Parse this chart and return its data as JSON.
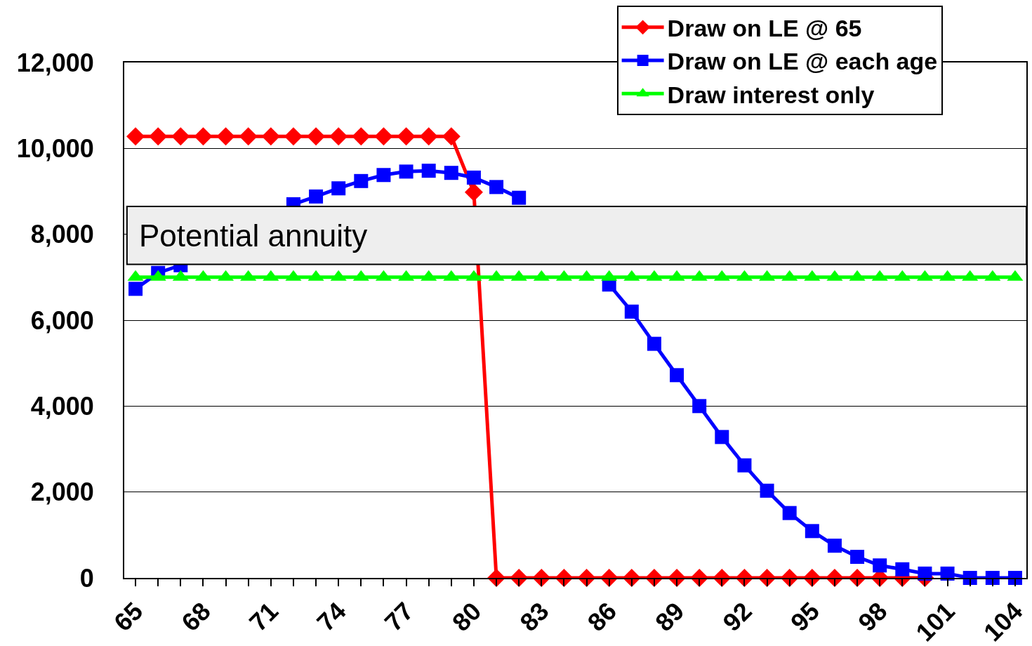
{
  "chart_data": {
    "type": "line",
    "categories": [
      "65",
      null,
      null,
      "68",
      null,
      null,
      "71",
      null,
      null,
      "74",
      null,
      null,
      "77",
      null,
      null,
      "80",
      null,
      null,
      "83",
      null,
      null,
      "86",
      null,
      null,
      "89",
      null,
      null,
      "92",
      null,
      null,
      "95",
      null,
      null,
      "98",
      null,
      null,
      "101",
      null,
      null,
      "104"
    ],
    "series": [
      {
        "name": "Draw on LE @ 65",
        "color": "#ff0000",
        "marker": "diamond",
        "values": [
          10280,
          10280,
          10280,
          10280,
          10280,
          10280,
          10280,
          10280,
          10280,
          10280,
          10280,
          10280,
          10280,
          10280,
          10280,
          8980,
          0,
          0,
          0,
          0,
          0,
          0,
          0,
          0,
          0,
          0,
          0,
          0,
          0,
          0,
          0,
          0,
          0,
          0,
          0,
          0,
          null,
          null,
          null,
          null
        ]
      },
      {
        "name": "Draw on LE @ each age",
        "color": "#0000ff",
        "marker": "square",
        "values": [
          6730,
          7100,
          7280,
          null,
          null,
          null,
          null,
          8700,
          8880,
          9070,
          9240,
          9380,
          9460,
          9480,
          9430,
          9320,
          9100,
          8850,
          null,
          null,
          null,
          6830,
          6200,
          5450,
          4720,
          4000,
          3280,
          2620,
          2030,
          1510,
          1090,
          750,
          490,
          290,
          200,
          100,
          100,
          0,
          0,
          0
        ]
      },
      {
        "name": "Draw interest only",
        "color": "#00ff00",
        "marker": "triangle",
        "values": [
          7000,
          7000,
          7000,
          7000,
          7000,
          7000,
          7000,
          7000,
          7000,
          7000,
          7000,
          7000,
          7000,
          7000,
          7000,
          7000,
          7000,
          7000,
          7000,
          7000,
          7000,
          7000,
          7000,
          7000,
          7000,
          7000,
          7000,
          7000,
          7000,
          7000,
          7000,
          7000,
          7000,
          7000,
          7000,
          7000,
          7000,
          7000,
          7000,
          7000
        ]
      }
    ],
    "ylim": [
      0,
      12000
    ],
    "yticks": [
      0,
      {
        "value": 2000,
        "label": "2,000"
      },
      {
        "value": 4000,
        "label": "4,000"
      },
      {
        "value": 6000,
        "label": "6,000"
      },
      {
        "value": 8000,
        "label": "8,000"
      },
      {
        "value": 10000,
        "label": "10,000"
      },
      {
        "value": 12000,
        "label": "12,000"
      }
    ],
    "grid": "y",
    "legend": "top right",
    "line_style": "solid",
    "bands": [
      {
        "axis": "y",
        "from": 7300,
        "to": 8650,
        "label": "Potential annuity",
        "color": "#eeeeee"
      }
    ]
  }
}
